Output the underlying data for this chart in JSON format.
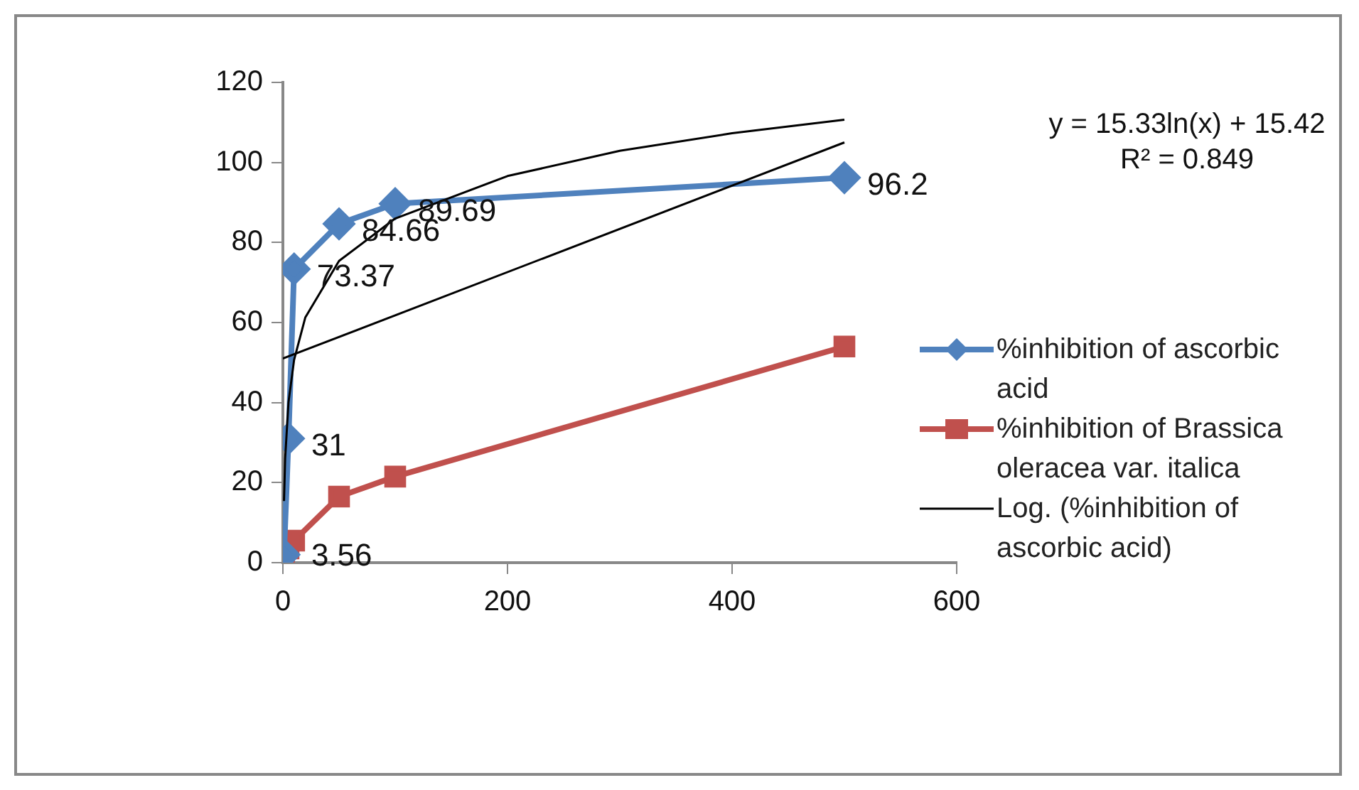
{
  "chart_data": {
    "type": "line",
    "x": [
      1,
      5,
      10,
      50,
      100,
      500
    ],
    "series": [
      {
        "name": "%inhibition of ascorbic acid",
        "color": "#4f81bd",
        "marker": "diamond",
        "values": [
          2,
          31,
          73.37,
          84.66,
          89.69,
          96.2
        ],
        "value_labels": [
          null,
          "31",
          "73.37",
          "84.66",
          "89.69",
          "96.2"
        ]
      },
      {
        "name": "%inhibition of Brassica oleracea var. italica",
        "color": "#c0504d",
        "marker": "square",
        "values": [
          1,
          3.56,
          5.5,
          16.5,
          21.5,
          54
        ],
        "value_labels": [
          null,
          "3.56",
          null,
          null,
          null,
          null
        ]
      },
      {
        "name": "Log. (%inhibition of ascorbic acid)",
        "color": "#000000",
        "marker": "none",
        "x": [
          1,
          2,
          5,
          10,
          20,
          50,
          100,
          200,
          300,
          400,
          500
        ],
        "values": [
          15.4,
          26,
          40.1,
          50.7,
          61.3,
          75.4,
          86,
          96.6,
          102.9,
          107.3,
          110.7
        ]
      },
      {
        "color": "#000000",
        "marker": "none",
        "x": [
          0,
          500
        ],
        "values": [
          51,
          105
        ]
      }
    ],
    "xlim": [
      0,
      600
    ],
    "xticks": [
      0,
      200,
      400,
      600
    ],
    "ylim": [
      0,
      120
    ],
    "yticks": [
      0,
      20,
      40,
      60,
      80,
      100,
      120
    ],
    "legend": "right",
    "annotations": [
      "y = 15.33ln(x) + 15.42",
      "R² = 0.849"
    ]
  }
}
